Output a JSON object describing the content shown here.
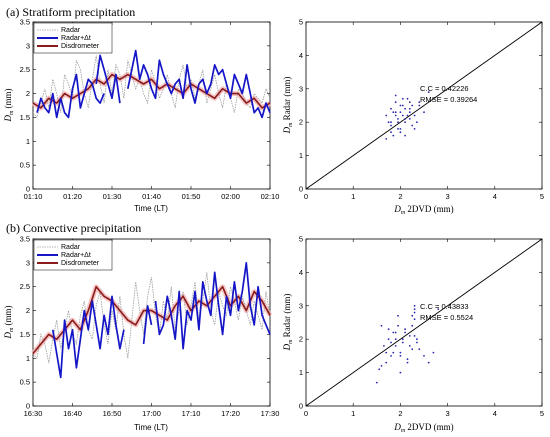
{
  "colors": {
    "radar": "#9a9a9a",
    "radar_dt": "#1515c8",
    "disdrometer": "#8b1a1a",
    "disdrometer_shade": "#f4b8b8",
    "scatter": "#2a2ab0"
  },
  "chart_data": [
    {
      "type": "line",
      "title": "(a) Stratiform precipitation",
      "xlabel": "Time (LT)",
      "ylabel_main": "D",
      "ylabel_sub": "m",
      "ylabel_unit": " (mm)",
      "xlim": [
        0,
        60
      ],
      "ylim": [
        0,
        3.5
      ],
      "xticks": [
        0,
        10,
        20,
        30,
        40,
        50,
        60
      ],
      "xtick_labels": [
        "01:10",
        "01:20",
        "01:30",
        "01:40",
        "01:50",
        "02:00",
        "02:10"
      ],
      "yticks": [
        0,
        0.5,
        1,
        1.5,
        2,
        2.5,
        3,
        3.5
      ],
      "ytick_labels": [
        "0",
        "0.5",
        "1",
        "1.5",
        "2",
        "2.5",
        "3",
        "3.5"
      ],
      "legend": [
        "Radar",
        "Radar+Δt",
        "Disdrometer"
      ],
      "series": [
        {
          "name": "Radar",
          "x": [
            0,
            1,
            2,
            3,
            4,
            5,
            6,
            7,
            8,
            9,
            10,
            11,
            12,
            13,
            14,
            15,
            16,
            17,
            18,
            19,
            20,
            21,
            22,
            23,
            24,
            25,
            26,
            27,
            28,
            29,
            30,
            31,
            32,
            33,
            34,
            35,
            36,
            37,
            38,
            39,
            40,
            41,
            42,
            43,
            44,
            45,
            46,
            47,
            48,
            49,
            50,
            51,
            52,
            53,
            54,
            55,
            56,
            57,
            58,
            59,
            60
          ],
          "values": [
            1.6,
            1.5,
            1.8,
            2.1,
            1.7,
            2.3,
            2.0,
            1.6,
            2.4,
            2.2,
            1.9,
            2.7,
            2.5,
            2.0,
            1.7,
            2.3,
            2.8,
            2.2,
            1.8,
            2.5,
            2.0,
            2.6,
            2.4,
            1.9,
            2.7,
            2.4,
            2.1,
            2.3,
            2.0,
            1.8,
            2.5,
            2.2,
            1.9,
            2.1,
            2.4,
            2.0,
            1.7,
            2.3,
            2.6,
            2.1,
            2.3,
            1.9,
            2.2,
            2.5,
            1.8,
            2.1,
            2.4,
            2.0,
            1.7,
            2.2,
            1.9,
            1.6,
            2.1,
            2.0,
            1.8,
            1.7,
            2.0,
            1.9,
            1.8,
            2.1,
            1.9
          ]
        },
        {
          "name": "Radar+Δt",
          "segments": [
            {
              "x": [
                1,
                2,
                3,
                4,
                5,
                6,
                7,
                8,
                9,
                10,
                11,
                12,
                13,
                14,
                15,
                16,
                17,
                18
              ],
              "values": [
                1.6,
                1.9,
                1.7,
                1.6,
                2.0,
                1.5,
                1.9,
                1.6,
                1.5,
                2.1,
                2.4,
                1.7,
                2.0,
                2.3,
                2.2,
                1.9,
                1.8,
                2.0
              ]
            },
            {
              "x": [
                16,
                17,
                18,
                19,
                20,
                21,
                22
              ],
              "values": [
                2.2,
                2.8,
                2.5,
                2.2,
                1.9,
                2.4,
                1.8
              ]
            },
            {
              "x": [
                24,
                25,
                26,
                27,
                28,
                29,
                30,
                31,
                32,
                33,
                34,
                35,
                36,
                37,
                38,
                39,
                40,
                41,
                42,
                43,
                44,
                45,
                46,
                47,
                48,
                49,
                50,
                51,
                52,
                53,
                54,
                55,
                56,
                57,
                58,
                59,
                60
              ],
              "values": [
                2.1,
                2.5,
                2.9,
                2.3,
                2.6,
                2.4,
                2.1,
                1.9,
                2.7,
                2.4,
                2.2,
                2.0,
                2.2,
                2.3,
                1.9,
                2.6,
                2.1,
                1.8,
                2.2,
                2.3,
                2.0,
                2.2,
                2.6,
                2.4,
                2.5,
                2.2,
                1.9,
                2.4,
                2.2,
                2.0,
                2.4,
                2.0,
                1.6,
                1.7,
                1.5,
                1.8,
                1.6
              ]
            }
          ]
        },
        {
          "name": "Disdrometer",
          "x": [
            0,
            2,
            4,
            6,
            8,
            10,
            12,
            14,
            16,
            18,
            20,
            22,
            24,
            26,
            28,
            30,
            32,
            34,
            36,
            38,
            40,
            42,
            44,
            46,
            48,
            50,
            52,
            54,
            56,
            58,
            60
          ],
          "values": [
            1.8,
            1.7,
            1.9,
            1.8,
            2.0,
            1.9,
            2.0,
            2.1,
            2.3,
            2.2,
            2.4,
            2.3,
            2.4,
            2.3,
            2.2,
            2.3,
            2.1,
            2.2,
            2.1,
            2.0,
            2.2,
            2.1,
            2.0,
            1.9,
            2.1,
            2.0,
            2.0,
            1.8,
            1.9,
            1.7,
            1.8
          ]
        }
      ]
    },
    {
      "type": "scatter",
      "xlabel_main": "D",
      "xlabel_sub": "m",
      "xlabel_unit": " 2DVD (mm)",
      "ylabel_main": "D",
      "ylabel_sub": "m",
      "ylabel_unit": " Radar (mm)",
      "xlim": [
        0,
        5
      ],
      "ylim": [
        0,
        5
      ],
      "xticks": [
        0,
        1,
        2,
        3,
        4,
        5
      ],
      "yticks": [
        0,
        1,
        2,
        3,
        4,
        5
      ],
      "stats": {
        "cc": "C.C = 0.42226",
        "rmse": "RMSE = 0.39264"
      },
      "x": [
        1.7,
        1.8,
        1.85,
        1.9,
        1.95,
        2.0,
        2.05,
        2.1,
        2.15,
        2.2,
        2.25,
        1.75,
        1.8,
        1.9,
        2.0,
        2.1,
        2.2,
        2.3,
        2.4,
        1.85,
        1.95,
        2.05,
        2.15,
        2.25,
        1.8,
        1.9,
        2.0,
        2.1,
        2.2,
        2.3,
        2.35,
        1.7,
        1.8,
        1.9,
        2.0,
        2.1,
        2.2,
        2.4,
        2.5,
        2.6,
        1.95,
        2.05
      ],
      "y": [
        1.5,
        1.7,
        2.3,
        2.6,
        2.0,
        1.8,
        2.2,
        2.4,
        2.7,
        2.1,
        1.9,
        2.0,
        2.4,
        2.2,
        2.5,
        2.0,
        2.3,
        1.8,
        2.6,
        1.6,
        2.1,
        2.7,
        2.2,
        2.5,
        2.0,
        2.3,
        1.7,
        2.1,
        2.6,
        2.2,
        2.0,
        2.2,
        1.9,
        2.8,
        2.3,
        1.6,
        2.4,
        2.5,
        2.3,
        2.9,
        1.8,
        2.5
      ]
    },
    {
      "type": "line",
      "title": "(b) Convective precipitation",
      "xlabel": "Time (LT)",
      "ylabel_main": "D",
      "ylabel_sub": "m",
      "ylabel_unit": " (mm)",
      "xlim": [
        0,
        60
      ],
      "ylim": [
        0,
        3.5
      ],
      "xticks": [
        0,
        10,
        20,
        30,
        40,
        50,
        60
      ],
      "xtick_labels": [
        "16:30",
        "16:40",
        "16:50",
        "17:00",
        "17:10",
        "17:20",
        "17:30"
      ],
      "yticks": [
        0,
        0.5,
        1,
        1.5,
        2,
        2.5,
        3,
        3.5
      ],
      "ytick_labels": [
        "0",
        "0.5",
        "1",
        "1.5",
        "2",
        "2.5",
        "3",
        "3.5"
      ],
      "legend": [
        "Radar",
        "Radar+Δt",
        "Disdrometer"
      ],
      "series": [
        {
          "name": "Radar",
          "x": [
            0,
            1,
            2,
            3,
            4,
            5,
            6,
            7,
            8,
            9,
            10,
            11,
            12,
            13,
            14,
            15,
            16,
            17,
            18,
            19,
            20,
            21,
            22,
            23,
            24,
            25,
            26,
            27,
            28,
            29,
            30,
            31,
            32,
            33,
            34,
            35,
            36,
            37,
            38,
            39,
            40,
            41,
            42,
            43,
            44,
            45,
            46,
            47,
            48,
            49,
            50,
            51,
            52,
            53,
            54,
            55,
            56,
            57,
            58,
            59,
            60
          ],
          "values": [
            1.1,
            1.0,
            1.5,
            1.3,
            0.9,
            1.4,
            1.8,
            1.2,
            1.6,
            2.0,
            1.5,
            1.3,
            1.9,
            2.2,
            1.6,
            1.4,
            2.1,
            2.4,
            1.7,
            1.3,
            2.0,
            1.6,
            2.3,
            1.5,
            1.0,
            1.8,
            2.6,
            2.0,
            1.5,
            2.3,
            2.7,
            1.9,
            1.5,
            2.2,
            1.8,
            2.5,
            1.6,
            2.0,
            2.4,
            1.7,
            2.1,
            2.6,
            1.8,
            2.2,
            2.8,
            2.0,
            1.7,
            2.4,
            2.1,
            1.9,
            2.5,
            2.2,
            1.8,
            2.3,
            2.0,
            1.7,
            2.2,
            1.9,
            1.6,
            2.4,
            1.9
          ]
        },
        {
          "name": "Radar+Δt",
          "segments": [
            {
              "x": [
                5,
                6,
                7,
                8,
                9,
                10,
                11,
                12,
                13,
                14,
                15,
                16,
                17,
                18,
                19,
                20,
                21,
                22,
                23
              ],
              "values": [
                1.6,
                1.1,
                0.6,
                1.8,
                1.2,
                1.6,
                0.8,
                1.4,
                2.0,
                1.6,
                2.2,
                1.7,
                1.2,
                1.9,
                1.5,
                2.3,
                1.7,
                1.2,
                1.6
              ]
            },
            {
              "x": [
                28,
                29,
                30
              ],
              "values": [
                1.3,
                2.1,
                1.7
              ]
            },
            {
              "x": [
                31,
                32,
                33,
                34,
                35,
                36,
                37,
                38,
                39,
                40,
                41,
                42,
                43,
                44,
                45,
                46,
                47,
                48,
                49,
                50,
                51,
                52,
                53,
                54,
                55,
                56,
                57,
                58,
                59,
                60
              ],
              "values": [
                2.2,
                1.5,
                1.7,
                2.3,
                1.9,
                1.4,
                2.4,
                1.2,
                2.0,
                1.8,
                2.4,
                1.6,
                2.6,
                2.2,
                1.9,
                2.8,
                2.1,
                1.5,
                2.3,
                1.9,
                2.6,
                2.0,
                2.4,
                3.0,
                2.1,
                1.7,
                2.5,
                1.9,
                1.7,
                1.5
              ]
            }
          ]
        },
        {
          "name": "Disdrometer",
          "x": [
            0,
            2,
            4,
            6,
            8,
            10,
            12,
            14,
            16,
            18,
            20,
            22,
            24,
            26,
            28,
            30,
            32,
            34,
            36,
            38,
            40,
            42,
            44,
            46,
            48,
            50,
            52,
            54,
            56,
            58,
            60
          ],
          "values": [
            1.1,
            1.3,
            1.5,
            1.4,
            1.6,
            1.8,
            1.6,
            2.0,
            2.5,
            2.3,
            2.2,
            2.0,
            1.8,
            1.7,
            2.0,
            2.0,
            1.9,
            1.8,
            2.1,
            2.3,
            2.0,
            2.2,
            2.1,
            2.3,
            2.5,
            2.1,
            2.3,
            2.0,
            2.4,
            2.2,
            1.9
          ]
        }
      ]
    },
    {
      "type": "scatter",
      "xlabel_main": "D",
      "xlabel_sub": "m",
      "xlabel_unit": " 2DVD (mm)",
      "ylabel_main": "D",
      "ylabel_sub": "m",
      "ylabel_unit": " Radar (mm)",
      "xlim": [
        0,
        5
      ],
      "ylim": [
        0,
        5
      ],
      "xticks": [
        0,
        1,
        2,
        3,
        4,
        5
      ],
      "yticks": [
        0,
        1,
        2,
        3,
        4,
        5
      ],
      "stats": {
        "cc": "C.C = 0.43833",
        "rmse": "RMSE = 0.5524"
      },
      "x": [
        1.5,
        1.6,
        1.7,
        1.75,
        1.8,
        1.85,
        1.9,
        1.95,
        2.0,
        2.05,
        2.1,
        2.15,
        2.2,
        2.25,
        2.3,
        2.35,
        1.6,
        1.7,
        1.8,
        1.9,
        2.0,
        2.1,
        2.2,
        2.3,
        2.4,
        1.55,
        1.65,
        1.75,
        1.85,
        1.95,
        2.05,
        2.15,
        2.25,
        2.3,
        2.35,
        2.5,
        2.6,
        2.7,
        1.9,
        2.0,
        2.3,
        2.3,
        2.25,
        2.8
      ],
      "y": [
        0.7,
        1.2,
        1.6,
        2.0,
        1.5,
        2.2,
        1.8,
        2.4,
        1.6,
        1.9,
        2.3,
        1.4,
        2.1,
        1.7,
        2.6,
        2.0,
        2.4,
        1.3,
        1.9,
        2.0,
        1.5,
        2.2,
        1.8,
        2.1,
        1.7,
        1.1,
        1.8,
        2.3,
        1.6,
        2.7,
        2.0,
        1.3,
        2.4,
        2.8,
        1.9,
        1.5,
        1.3,
        1.6,
        2.2,
        1.0,
        3.0,
        2.9,
        2.7,
        2.9
      ]
    }
  ]
}
